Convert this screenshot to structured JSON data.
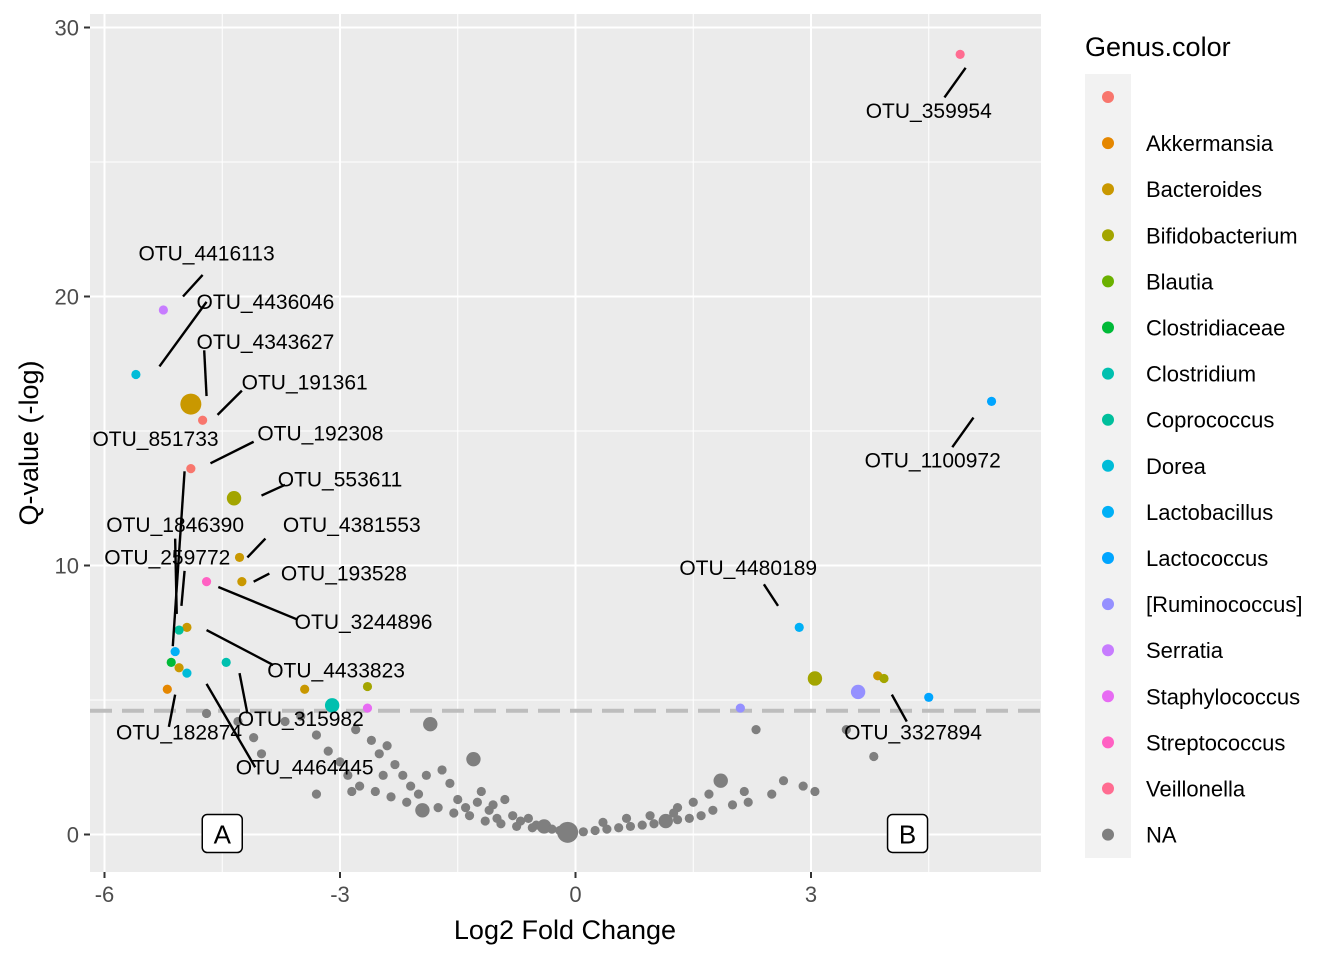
{
  "chart_data": {
    "type": "scatter",
    "xlabel": "Log2 Fold Change",
    "ylabel": "Q-value (-log)",
    "xlim": [
      -6.2,
      5.7
    ],
    "ylim": [
      -1.5,
      30.8
    ],
    "x_ticks": [
      -6,
      -3,
      0,
      3
    ],
    "x_tick_labels": [
      "-6",
      "-3",
      "0",
      "3"
    ],
    "y_ticks": [
      0,
      10,
      20,
      30
    ],
    "y_tick_labels": [
      "0",
      "10",
      "20",
      "30"
    ],
    "threshold_y": 4.6,
    "grid": true,
    "legend": {
      "title": "Genus.color",
      "position": "right",
      "entries": [
        {
          "label": "",
          "color": "#F8766D"
        },
        {
          "label": "Akkermansia",
          "color": "#E58700"
        },
        {
          "label": "Bacteroides",
          "color": "#C99800"
        },
        {
          "label": "Bifidobacterium",
          "color": "#A3A500"
        },
        {
          "label": "Blautia",
          "color": "#6BB100"
        },
        {
          "label": "Clostridiaceae",
          "color": "#00BA38"
        },
        {
          "label": "Clostridium",
          "color": "#00C0AF"
        },
        {
          "label": "Coprococcus",
          "color": "#00BF9C"
        },
        {
          "label": "Dorea",
          "color": "#00BCD8"
        },
        {
          "label": "Lactobacillus",
          "color": "#00B0F6"
        },
        {
          "label": "Lactococcus",
          "color": "#00A5FF"
        },
        {
          "label": "[Ruminococcus]",
          "color": "#9590FF"
        },
        {
          "label": "Serratia",
          "color": "#C77CFF"
        },
        {
          "label": "Staphylococcus",
          "color": "#E76BF3"
        },
        {
          "label": "Streptococcus",
          "color": "#FF61C3"
        },
        {
          "label": "Veillonella",
          "color": "#FF6C91"
        },
        {
          "label": "NA",
          "color": "#7F7F7F"
        }
      ]
    },
    "colored_points": [
      {
        "x": 4.9,
        "y": 29.0,
        "genus": "Veillonella",
        "size": 1
      },
      {
        "x": 5.3,
        "y": 16.1,
        "genus": "Lactococcus",
        "size": 1
      },
      {
        "x": 2.85,
        "y": 7.7,
        "genus": "Lactobacillus",
        "size": 1
      },
      {
        "x": 3.05,
        "y": 5.8,
        "genus": "Bifidobacterium",
        "size": 2
      },
      {
        "x": 3.85,
        "y": 5.9,
        "genus": "Bacteroides",
        "size": 1
      },
      {
        "x": 3.93,
        "y": 5.8,
        "genus": "Bifidobacterium",
        "size": 1
      },
      {
        "x": 3.6,
        "y": 5.3,
        "genus": "[Ruminococcus]",
        "size": 2
      },
      {
        "x": 4.5,
        "y": 5.1,
        "genus": "Lactococcus",
        "size": 1
      },
      {
        "x": 2.1,
        "y": 4.7,
        "genus": "[Ruminococcus]",
        "size": 1
      },
      {
        "x": -5.25,
        "y": 19.5,
        "genus": "Serratia",
        "size": 1
      },
      {
        "x": -5.6,
        "y": 17.1,
        "genus": "Dorea",
        "size": 1
      },
      {
        "x": -4.9,
        "y": 16.0,
        "genus": "Bacteroides",
        "size": 3
      },
      {
        "x": -4.75,
        "y": 15.4,
        "genus": "",
        "size": 1
      },
      {
        "x": -4.9,
        "y": 13.6,
        "genus": "",
        "size": 1
      },
      {
        "x": -4.35,
        "y": 12.5,
        "genus": "Bifidobacterium",
        "size": 2
      },
      {
        "x": -4.28,
        "y": 10.3,
        "genus": "Bacteroides",
        "size": 1
      },
      {
        "x": -4.25,
        "y": 9.4,
        "genus": "Bacteroides",
        "size": 1
      },
      {
        "x": -4.7,
        "y": 9.4,
        "genus": "Streptococcus",
        "size": 1
      },
      {
        "x": -4.95,
        "y": 7.7,
        "genus": "Bacteroides",
        "size": 1
      },
      {
        "x": -5.05,
        "y": 7.6,
        "genus": "Coprococcus",
        "size": 1
      },
      {
        "x": -5.1,
        "y": 6.8,
        "genus": "Lactobacillus",
        "size": 1
      },
      {
        "x": -5.15,
        "y": 6.4,
        "genus": "Clostridiaceae",
        "size": 1
      },
      {
        "x": -5.05,
        "y": 6.2,
        "genus": "Bacteroides",
        "size": 1
      },
      {
        "x": -4.95,
        "y": 6.0,
        "genus": "Dorea",
        "size": 1
      },
      {
        "x": -4.45,
        "y": 6.4,
        "genus": "Clostridium",
        "size": 1
      },
      {
        "x": -5.2,
        "y": 5.4,
        "genus": "Akkermansia",
        "size": 1
      },
      {
        "x": -3.45,
        "y": 5.4,
        "genus": "Bacteroides",
        "size": 1
      },
      {
        "x": -2.65,
        "y": 5.5,
        "genus": "Bifidobacterium",
        "size": 1
      },
      {
        "x": -3.1,
        "y": 4.8,
        "genus": "Clostridium",
        "size": 2
      },
      {
        "x": -2.65,
        "y": 4.7,
        "genus": "Staphylococcus",
        "size": 1
      }
    ],
    "na_points": [
      [
        -4.7,
        4.5,
        1
      ],
      [
        -4.3,
        4.2,
        1
      ],
      [
        -4.1,
        3.6,
        1
      ],
      [
        -4.0,
        3.0,
        1
      ],
      [
        -3.7,
        4.2,
        1
      ],
      [
        -3.5,
        4.4,
        1
      ],
      [
        -3.3,
        3.7,
        1
      ],
      [
        -3.15,
        3.1,
        1
      ],
      [
        -3.0,
        2.7,
        1
      ],
      [
        -2.8,
        3.9,
        1
      ],
      [
        -2.6,
        3.5,
        1
      ],
      [
        -2.5,
        3.0,
        1
      ],
      [
        -2.4,
        3.3,
        1
      ],
      [
        -2.3,
        2.6,
        1
      ],
      [
        -2.2,
        2.2,
        1
      ],
      [
        -2.1,
        1.8,
        1
      ],
      [
        -2.0,
        1.5,
        1
      ],
      [
        -1.85,
        4.1,
        2
      ],
      [
        -1.7,
        2.4,
        1
      ],
      [
        -1.6,
        1.9,
        1
      ],
      [
        -1.5,
        1.3,
        1
      ],
      [
        -1.4,
        1.0,
        1
      ],
      [
        -1.3,
        2.8,
        2
      ],
      [
        -1.2,
        1.6,
        1
      ],
      [
        -1.1,
        0.9,
        1
      ],
      [
        -1.0,
        0.6,
        1
      ],
      [
        -0.9,
        1.3,
        1
      ],
      [
        -0.8,
        0.7,
        1
      ],
      [
        -0.7,
        0.5,
        1
      ],
      [
        -0.6,
        0.6,
        1
      ],
      [
        -0.5,
        0.35,
        1
      ],
      [
        -0.4,
        0.3,
        2
      ],
      [
        -0.3,
        0.2,
        1
      ],
      [
        -0.2,
        0.15,
        1
      ],
      [
        -0.1,
        0.08,
        3
      ],
      [
        -2.9,
        2.2,
        1
      ],
      [
        -2.75,
        1.8,
        1
      ],
      [
        -2.55,
        1.6,
        1
      ],
      [
        -2.35,
        1.4,
        1
      ],
      [
        -2.15,
        1.2,
        1
      ],
      [
        -1.95,
        0.9,
        2
      ],
      [
        -1.75,
        1.0,
        1
      ],
      [
        -1.55,
        0.8,
        1
      ],
      [
        -1.35,
        0.7,
        1
      ],
      [
        -1.15,
        0.5,
        1
      ],
      [
        -0.95,
        0.4,
        1
      ],
      [
        -0.75,
        0.3,
        1
      ],
      [
        -0.55,
        0.25,
        1
      ],
      [
        -3.3,
        1.5,
        1
      ],
      [
        -2.85,
        1.6,
        1
      ],
      [
        -2.45,
        2.2,
        1
      ],
      [
        -1.9,
        2.2,
        1
      ],
      [
        -1.25,
        1.2,
        1
      ],
      [
        -1.05,
        1.1,
        1
      ],
      [
        0.1,
        0.1,
        1
      ],
      [
        0.25,
        0.15,
        1
      ],
      [
        0.4,
        0.2,
        1
      ],
      [
        0.55,
        0.25,
        1
      ],
      [
        0.7,
        0.3,
        1
      ],
      [
        0.85,
        0.35,
        1
      ],
      [
        1.0,
        0.4,
        1
      ],
      [
        1.15,
        0.5,
        2
      ],
      [
        1.3,
        0.55,
        1
      ],
      [
        1.45,
        0.6,
        1
      ],
      [
        1.6,
        0.7,
        1
      ],
      [
        1.75,
        0.9,
        1
      ],
      [
        1.85,
        2.0,
        2
      ],
      [
        1.7,
        1.5,
        1
      ],
      [
        1.5,
        1.2,
        1
      ],
      [
        1.3,
        1.0,
        1
      ],
      [
        2.0,
        1.1,
        1
      ],
      [
        2.15,
        1.6,
        1
      ],
      [
        2.3,
        3.9,
        1
      ],
      [
        2.5,
        1.5,
        1
      ],
      [
        2.65,
        2.0,
        1
      ],
      [
        2.9,
        1.8,
        1
      ],
      [
        3.05,
        1.6,
        1
      ],
      [
        3.45,
        3.9,
        1
      ],
      [
        3.8,
        2.9,
        1
      ],
      [
        0.65,
        0.6,
        1
      ],
      [
        0.95,
        0.7,
        1
      ],
      [
        1.25,
        0.8,
        1
      ],
      [
        0.35,
        0.45,
        1
      ],
      [
        2.2,
        1.2,
        1
      ]
    ],
    "annotations": [
      {
        "text": "OTU_359954",
        "x": 4.5,
        "y": 26.9,
        "line": [
          [
            4.7,
            27.4
          ],
          [
            4.97,
            28.5
          ]
        ]
      },
      {
        "text": "OTU_1100972",
        "x": 4.55,
        "y": 13.9,
        "line": [
          [
            4.8,
            14.4
          ],
          [
            5.07,
            15.5
          ]
        ]
      },
      {
        "text": "OTU_4480189",
        "x": 2.2,
        "y": 9.9,
        "line": [
          [
            2.58,
            8.5
          ],
          [
            2.4,
            9.3
          ]
        ]
      },
      {
        "text": "OTU_3327894",
        "x": 4.3,
        "y": 3.8,
        "line": [
          [
            4.22,
            4.2
          ],
          [
            4.03,
            5.2
          ]
        ]
      },
      {
        "text": "OTU_4416113",
        "x": -4.7,
        "y": 21.6,
        "line": [
          [
            -5.0,
            20.0
          ],
          [
            -4.75,
            20.8
          ]
        ]
      },
      {
        "text": "OTU_4436046",
        "x": -3.95,
        "y": 19.8,
        "line": [
          [
            -5.3,
            17.4
          ],
          [
            -4.7,
            19.8
          ]
        ]
      },
      {
        "text": "OTU_4343627",
        "x": -3.95,
        "y": 18.3,
        "line": [
          [
            -4.7,
            16.3
          ],
          [
            -4.73,
            18.0
          ]
        ]
      },
      {
        "text": "OTU_191361",
        "x": -3.45,
        "y": 16.8,
        "line": [
          [
            -4.56,
            15.6
          ],
          [
            -4.25,
            16.5
          ]
        ]
      },
      {
        "text": "OTU_851733",
        "x": -5.35,
        "y": 14.7,
        "line": [
          [
            -4.98,
            13.5
          ],
          [
            -5.13,
            7.0
          ]
        ]
      },
      {
        "text": "OTU_192308",
        "x": -3.25,
        "y": 14.9,
        "line": [
          [
            -4.65,
            13.8
          ],
          [
            -4.1,
            14.6
          ]
        ]
      },
      {
        "text": "OTU_553611",
        "x": -3.0,
        "y": 13.2,
        "line": [
          [
            -4.0,
            12.6
          ],
          [
            -3.7,
            13.0
          ]
        ]
      },
      {
        "text": "OTU_1846390",
        "x": -5.1,
        "y": 11.5,
        "line": [
          [
            -5.1,
            11.0
          ],
          [
            -5.08,
            8.2
          ]
        ]
      },
      {
        "text": "OTU_4381553",
        "x": -2.85,
        "y": 11.5,
        "line": [
          [
            -4.18,
            10.3
          ],
          [
            -3.95,
            11.0
          ]
        ]
      },
      {
        "text": "OTU_259772",
        "x": -5.2,
        "y": 10.3,
        "line": [
          [
            -4.98,
            9.8
          ],
          [
            -5.02,
            8.5
          ]
        ]
      },
      {
        "text": "OTU_193528",
        "x": -2.95,
        "y": 9.7,
        "line": [
          [
            -4.1,
            9.4
          ],
          [
            -3.9,
            9.7
          ]
        ]
      },
      {
        "text": "OTU_3244896",
        "x": -2.7,
        "y": 7.9,
        "line": [
          [
            -4.55,
            9.2
          ],
          [
            -3.55,
            8.0
          ]
        ]
      },
      {
        "text": "OTU_4433823",
        "x": -3.05,
        "y": 6.1,
        "line": [
          [
            -4.7,
            7.6
          ],
          [
            -3.85,
            6.3
          ]
        ]
      },
      {
        "text": "OTU_315982",
        "x": -3.5,
        "y": 4.3,
        "line": [
          [
            -4.28,
            6.0
          ],
          [
            -4.18,
            4.5
          ]
        ]
      },
      {
        "text": "OTU_182874",
        "x": -5.05,
        "y": 3.8,
        "line": [
          [
            -5.1,
            5.2
          ],
          [
            -5.18,
            4.0
          ]
        ]
      },
      {
        "text": "OTU_4464445",
        "x": -3.45,
        "y": 2.5,
        "line": [
          [
            -4.7,
            5.6
          ],
          [
            -4.08,
            2.5
          ]
        ]
      }
    ],
    "boxes": [
      {
        "text": "A",
        "x": -4.5,
        "y": 0
      },
      {
        "text": "B",
        "x": 4.23,
        "y": 0
      }
    ]
  }
}
